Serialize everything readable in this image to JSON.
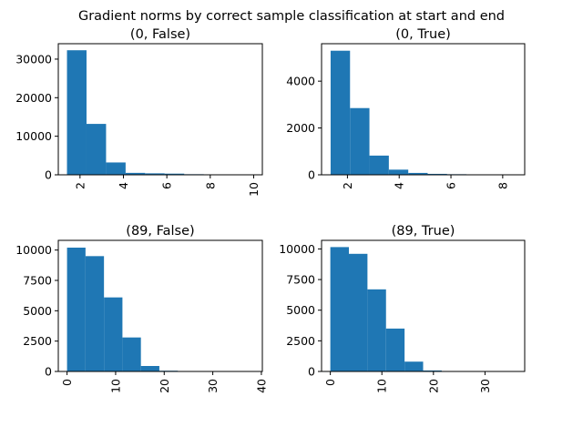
{
  "suptitle": "Gradient norms by correct sample classification at start and end",
  "bar_color": "#1f77b4",
  "chart_data": [
    {
      "type": "bar",
      "title": "(0, False)",
      "xlim": [
        1.0,
        10.4
      ],
      "ylim": [
        0,
        34000
      ],
      "xticks": [
        2,
        4,
        6,
        8,
        10
      ],
      "yticks": [
        0,
        10000,
        20000,
        30000
      ],
      "bins": [
        {
          "x0": 1.4,
          "x1": 2.3,
          "value": 32300
        },
        {
          "x0": 2.3,
          "x1": 3.2,
          "value": 13200
        },
        {
          "x0": 3.2,
          "x1": 4.1,
          "value": 3200
        },
        {
          "x0": 4.1,
          "x1": 5.0,
          "value": 500
        },
        {
          "x0": 5.0,
          "x1": 5.9,
          "value": 380
        },
        {
          "x0": 5.9,
          "x1": 6.8,
          "value": 300
        },
        {
          "x0": 6.8,
          "x1": 7.7,
          "value": 150
        },
        {
          "x0": 7.7,
          "x1": 8.6,
          "value": 60
        },
        {
          "x0": 8.6,
          "x1": 9.5,
          "value": 20
        },
        {
          "x0": 9.5,
          "x1": 10.0,
          "value": 8
        }
      ]
    },
    {
      "type": "bar",
      "title": "(0, True)",
      "xlim": [
        1.0,
        8.85
      ],
      "ylim": [
        0,
        5600
      ],
      "xticks": [
        2,
        4,
        6,
        8
      ],
      "yticks": [
        0,
        2000,
        4000
      ],
      "bins": [
        {
          "x0": 1.35,
          "x1": 2.1,
          "value": 5300
        },
        {
          "x0": 2.1,
          "x1": 2.85,
          "value": 2850
        },
        {
          "x0": 2.85,
          "x1": 3.6,
          "value": 820
        },
        {
          "x0": 3.6,
          "x1": 4.35,
          "value": 220
        },
        {
          "x0": 4.35,
          "x1": 5.1,
          "value": 80
        },
        {
          "x0": 5.1,
          "x1": 5.85,
          "value": 40
        },
        {
          "x0": 5.85,
          "x1": 6.6,
          "value": 25
        },
        {
          "x0": 6.6,
          "x1": 7.35,
          "value": 15
        },
        {
          "x0": 7.35,
          "x1": 8.1,
          "value": 8
        },
        {
          "x0": 8.1,
          "x1": 8.5,
          "value": 4
        }
      ]
    },
    {
      "type": "bar",
      "title": "(89, False)",
      "xlim": [
        -1.8,
        40.2
      ],
      "ylim": [
        0,
        10800
      ],
      "xticks": [
        0,
        10,
        20,
        30,
        40
      ],
      "yticks": [
        0,
        2500,
        5000,
        7500,
        10000
      ],
      "bins": [
        {
          "x0": 0.0,
          "x1": 3.8,
          "value": 10200
        },
        {
          "x0": 3.8,
          "x1": 7.6,
          "value": 9500
        },
        {
          "x0": 7.6,
          "x1": 11.4,
          "value": 6100
        },
        {
          "x0": 11.4,
          "x1": 15.2,
          "value": 2800
        },
        {
          "x0": 15.2,
          "x1": 19.0,
          "value": 450
        },
        {
          "x0": 19.0,
          "x1": 22.8,
          "value": 60
        },
        {
          "x0": 22.8,
          "x1": 26.6,
          "value": 15
        },
        {
          "x0": 26.6,
          "x1": 30.4,
          "value": 8
        },
        {
          "x0": 30.4,
          "x1": 34.2,
          "value": 4
        },
        {
          "x0": 34.2,
          "x1": 38.0,
          "value": 2
        }
      ]
    },
    {
      "type": "bar",
      "title": "(89, True)",
      "xlim": [
        -1.7,
        37.7
      ],
      "ylim": [
        0,
        10700
      ],
      "xticks": [
        0,
        10,
        20,
        30
      ],
      "yticks": [
        0,
        2500,
        5000,
        7500,
        10000
      ],
      "bins": [
        {
          "x0": 0.0,
          "x1": 3.6,
          "value": 10150
        },
        {
          "x0": 3.6,
          "x1": 7.2,
          "value": 9600
        },
        {
          "x0": 7.2,
          "x1": 10.8,
          "value": 6700
        },
        {
          "x0": 10.8,
          "x1": 14.4,
          "value": 3500
        },
        {
          "x0": 14.4,
          "x1": 18.0,
          "value": 800
        },
        {
          "x0": 18.0,
          "x1": 21.6,
          "value": 80
        },
        {
          "x0": 21.6,
          "x1": 25.2,
          "value": 20
        },
        {
          "x0": 25.2,
          "x1": 28.8,
          "value": 10
        },
        {
          "x0": 28.8,
          "x1": 32.4,
          "value": 5
        },
        {
          "x0": 32.4,
          "x1": 36.0,
          "value": 2
        }
      ]
    }
  ]
}
